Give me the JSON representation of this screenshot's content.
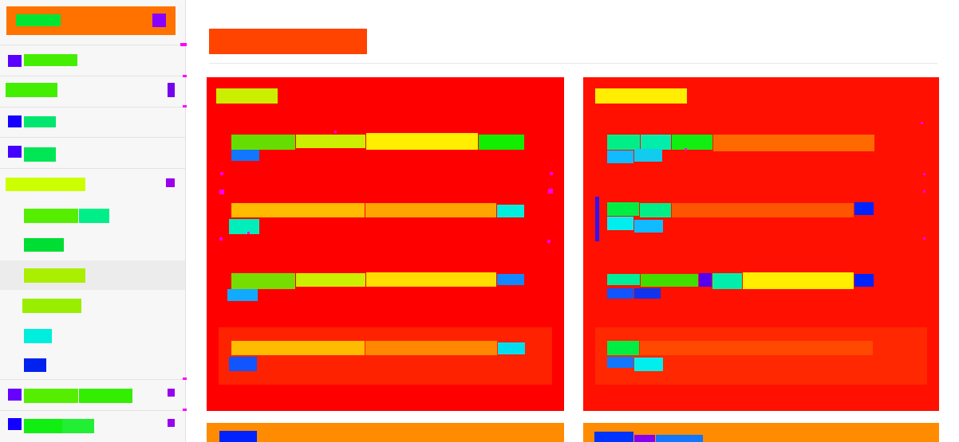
{
  "colors": {
    "sidebar_bg": "#f7f7f7",
    "sidebar_selected_bg": "#ececec",
    "brand_header": "#ff7200",
    "page_title": "#ff4400",
    "card_bg": "#ff0000",
    "card_bg_right": "#ff1000",
    "card_footer_bg": "#ff2800",
    "bottom_card": "#ff8c00"
  },
  "sidebar": {
    "brand": {
      "label": "",
      "icon": "app-icon"
    },
    "items": [
      {
        "label": "",
        "icon": "nav-icon"
      },
      {
        "label": ""
      },
      {
        "label": "",
        "icon": "nav-icon"
      },
      {
        "label": "",
        "icon": "nav-icon"
      },
      {
        "label": "",
        "expanded": true
      },
      {
        "label": ""
      },
      {
        "label": ""
      },
      {
        "label": "",
        "selected": true
      },
      {
        "label": ""
      },
      {
        "label": ""
      },
      {
        "label": ""
      },
      {
        "label": "",
        "icon": "nav-icon"
      },
      {
        "label": "",
        "icon": "nav-icon"
      }
    ]
  },
  "main": {
    "page_title": "",
    "cards": [
      {
        "title": "",
        "rows": [
          {
            "cells": []
          },
          {
            "cells": []
          },
          {
            "cells": []
          },
          {
            "cells": []
          }
        ]
      },
      {
        "title": "",
        "rows": [
          {
            "cells": []
          },
          {
            "cells": []
          },
          {
            "cells": []
          },
          {
            "cells": []
          }
        ]
      }
    ],
    "bottom_cards": [
      {
        "label": ""
      },
      {
        "label": ""
      }
    ]
  }
}
